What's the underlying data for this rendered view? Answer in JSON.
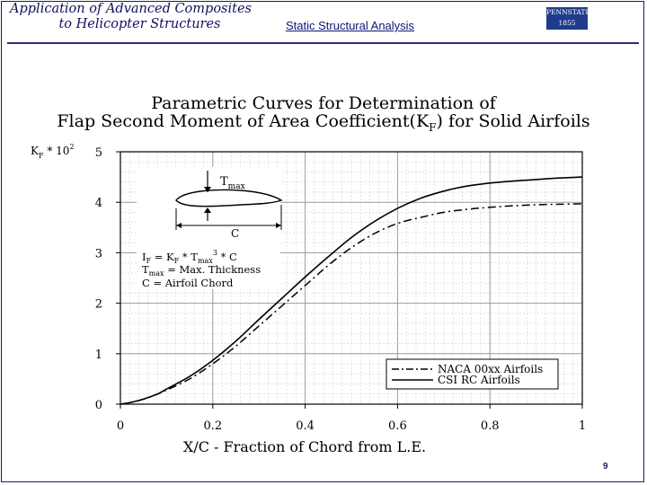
{
  "header": {
    "title_line1": "Application of Advanced Composites",
    "title_line2": "to Helicopter Structures",
    "section": "Static Structural Analysis",
    "logo_line1": "PENNSTATE",
    "logo_line2": "1855"
  },
  "page_number": "9",
  "colors": {
    "header_text": "#101060",
    "rule": "#2b2b80",
    "logo_bg": "#1f3c8c"
  },
  "chart_data": {
    "type": "line",
    "title_line1": "Parametric Curves for Determination of",
    "title_line2": "Flap Second Moment of Area Coefficient(K",
    "title_sub": "F",
    "title_line2_end": ") for Solid Airfoils",
    "xlabel": "X/C - Fraction of Chord from L.E.",
    "ylabel": "K",
    "ylabel_sub": "F",
    "ylabel_end": " * 10",
    "ylabel_sup": "2",
    "xlim": [
      0,
      1
    ],
    "ylim": [
      0,
      5
    ],
    "x_ticks": [
      "0",
      "0.2",
      "0.4",
      "0.6",
      "0.8",
      "1"
    ],
    "y_ticks": [
      "0",
      "1",
      "2",
      "3",
      "4",
      "5"
    ],
    "grid": true,
    "legend_position": "bottom-right",
    "series": [
      {
        "name": "NACA 00xx Airfoils",
        "style": "dashdot",
        "x": [
          0,
          0.02,
          0.05,
          0.08,
          0.1,
          0.15,
          0.2,
          0.25,
          0.3,
          0.35,
          0.4,
          0.45,
          0.5,
          0.55,
          0.6,
          0.65,
          0.7,
          0.75,
          0.8,
          0.85,
          0.9,
          0.95,
          1.0
        ],
        "y": [
          0,
          0.03,
          0.1,
          0.2,
          0.28,
          0.5,
          0.8,
          1.15,
          1.55,
          1.95,
          2.35,
          2.75,
          3.1,
          3.38,
          3.58,
          3.7,
          3.8,
          3.86,
          3.9,
          3.93,
          3.95,
          3.96,
          3.97
        ]
      },
      {
        "name": "CSI RC Airfoils",
        "style": "solid",
        "x": [
          0,
          0.02,
          0.05,
          0.08,
          0.1,
          0.15,
          0.2,
          0.25,
          0.3,
          0.35,
          0.4,
          0.45,
          0.5,
          0.55,
          0.6,
          0.65,
          0.7,
          0.75,
          0.8,
          0.85,
          0.9,
          0.95,
          1.0
        ],
        "y": [
          0,
          0.03,
          0.1,
          0.2,
          0.3,
          0.55,
          0.87,
          1.25,
          1.68,
          2.1,
          2.52,
          2.92,
          3.3,
          3.62,
          3.88,
          4.08,
          4.22,
          4.32,
          4.38,
          4.42,
          4.45,
          4.48,
          4.5
        ]
      }
    ],
    "inset": {
      "tmax_label": "T",
      "tmax_sub": "max",
      "c_label": "C",
      "eq1_a": "I",
      "eq1_a_sub": "F",
      "eq1_b": " = K",
      "eq1_b_sub": "F",
      "eq1_c": " * T",
      "eq1_c_sub": "max",
      "eq1_c_sup": "3",
      "eq1_d": " * C",
      "eq2": "T",
      "eq2_sub": "max",
      "eq2_end": " = Max. Thickness",
      "eq3": "C = Airfoil Chord"
    }
  }
}
